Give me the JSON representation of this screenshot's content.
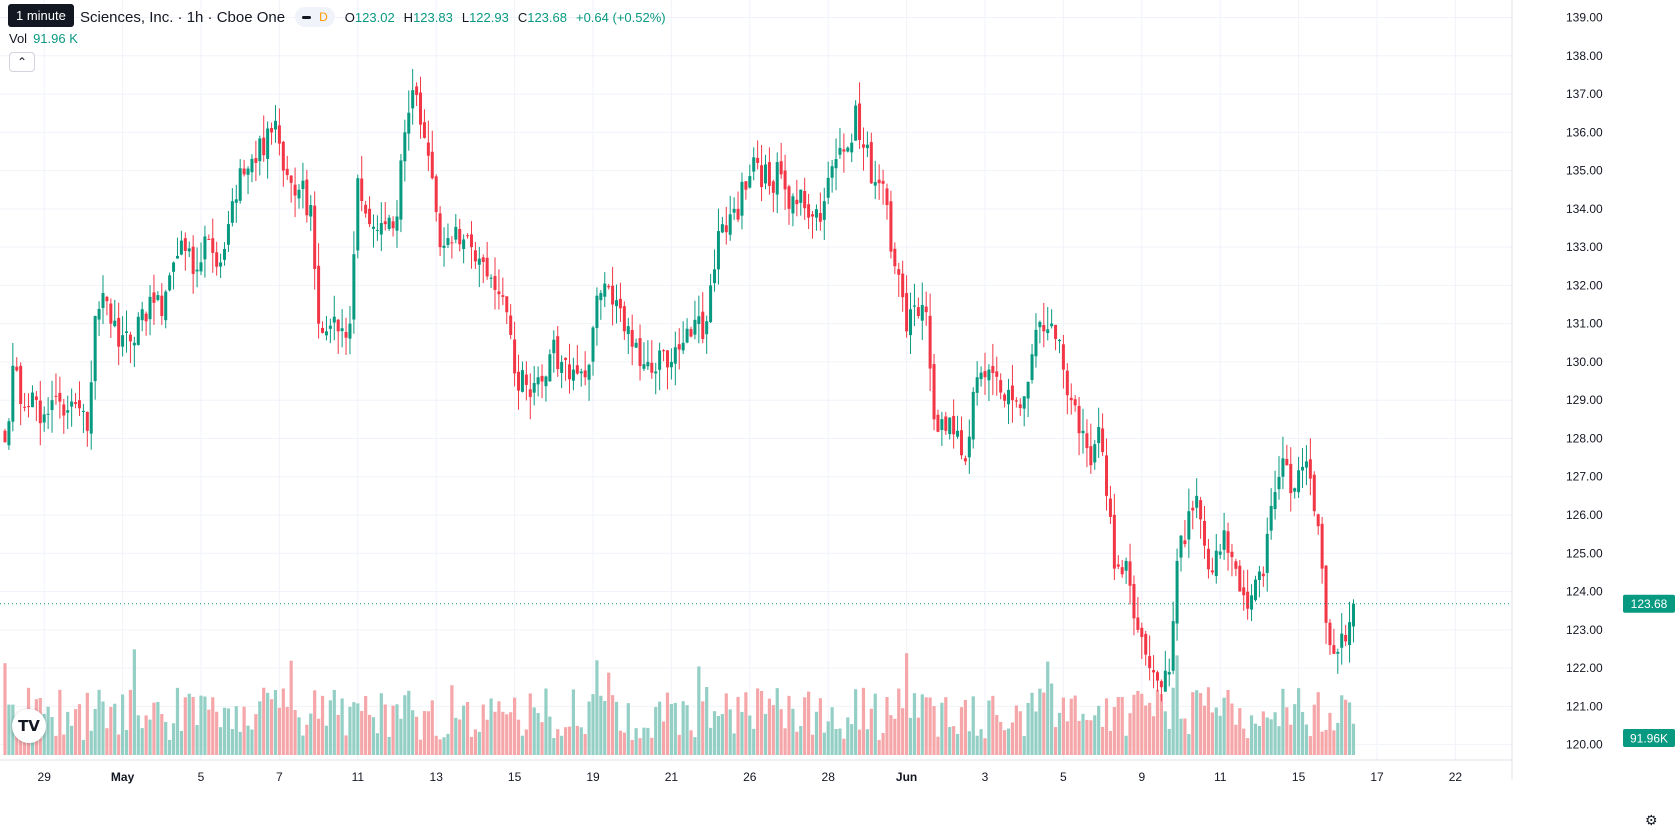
{
  "header": {
    "tooltip": "1 minute",
    "title": "Sciences, Inc. · 1h · Cboe One",
    "pill_label": "D",
    "ohlc": [
      {
        "key": "O",
        "value": "123.02"
      },
      {
        "key": "H",
        "value": "123.83"
      },
      {
        "key": "L",
        "value": "122.93"
      },
      {
        "key": "C",
        "value": "123.68"
      }
    ],
    "change": "+0.64 (+0.52%)"
  },
  "volume": {
    "label": "Vol",
    "value": "91.96 K"
  },
  "price_badge": "123.68",
  "volume_badge": "91.96K",
  "colors": {
    "up": "#089981",
    "down": "#f23645",
    "up_vol": "#93cfc5",
    "down_vol": "#f5a6a9",
    "grid": "#f0f3fa"
  },
  "icons": {
    "collapse": "chevron-up-icon",
    "logo": "tradingview-logo-icon",
    "settings": "gear-icon"
  },
  "chart_data": {
    "type": "candlestick",
    "y_ticks": [
      "120.00",
      "121.00",
      "122.00",
      "123.00",
      "124.00",
      "125.00",
      "126.00",
      "127.00",
      "128.00",
      "129.00",
      "130.00",
      "131.00",
      "132.00",
      "133.00",
      "134.00",
      "135.00",
      "136.00",
      "137.00",
      "138.00",
      "139.00"
    ],
    "ylim": [
      119.7,
      139.35
    ],
    "x_ticks": [
      {
        "label": "29",
        "bar": 10,
        "bold": false
      },
      {
        "label": "May",
        "bar": 30,
        "bold": true
      },
      {
        "label": "5",
        "bar": 50,
        "bold": false
      },
      {
        "label": "7",
        "bar": 70,
        "bold": false
      },
      {
        "label": "11",
        "bar": 90,
        "bold": false
      },
      {
        "label": "13",
        "bar": 110,
        "bold": false
      },
      {
        "label": "15",
        "bar": 130,
        "bold": false
      },
      {
        "label": "19",
        "bar": 150,
        "bold": false
      },
      {
        "label": "21",
        "bar": 170,
        "bold": false
      },
      {
        "label": "26",
        "bar": 190,
        "bold": false
      },
      {
        "label": "28",
        "bar": 210,
        "bold": false
      },
      {
        "label": "Jun",
        "bar": 230,
        "bold": true
      },
      {
        "label": "3",
        "bar": 250,
        "bold": false
      },
      {
        "label": "5",
        "bar": 270,
        "bold": false
      },
      {
        "label": "9",
        "bar": 290,
        "bold": false
      },
      {
        "label": "11",
        "bar": 310,
        "bold": false
      },
      {
        "label": "15",
        "bar": 330,
        "bold": false
      },
      {
        "label": "17",
        "bar": 350,
        "bold": false
      },
      {
        "label": "22",
        "bar": 370,
        "bold": false
      }
    ],
    "anchors": [
      [
        0,
        127.9
      ],
      [
        2,
        129.9
      ],
      [
        4,
        128.9
      ],
      [
        7,
        129.2
      ],
      [
        9,
        128.4
      ],
      [
        12,
        129.0
      ],
      [
        15,
        128.6
      ],
      [
        18,
        128.9
      ],
      [
        21,
        128.2
      ],
      [
        23,
        131.2
      ],
      [
        25,
        131.8
      ],
      [
        27,
        131.0
      ],
      [
        30,
        130.7
      ],
      [
        33,
        130.5
      ],
      [
        37,
        131.7
      ],
      [
        40,
        131.2
      ],
      [
        43,
        132.6
      ],
      [
        46,
        132.9
      ],
      [
        48,
        132.3
      ],
      [
        52,
        133.2
      ],
      [
        55,
        132.6
      ],
      [
        58,
        134.2
      ],
      [
        61,
        134.9
      ],
      [
        64,
        135.2
      ],
      [
        67,
        136.1
      ],
      [
        69,
        136.3
      ],
      [
        71,
        135.0
      ],
      [
        75,
        134.5
      ],
      [
        78,
        134.1
      ],
      [
        80,
        131.0
      ],
      [
        82,
        130.8
      ],
      [
        85,
        130.8
      ],
      [
        88,
        131.0
      ],
      [
        90,
        134.8
      ],
      [
        93,
        133.6
      ],
      [
        97,
        133.6
      ],
      [
        100,
        133.8
      ],
      [
        102,
        136.0
      ],
      [
        104,
        137.1
      ],
      [
        106,
        136.2
      ],
      [
        109,
        134.8
      ],
      [
        111,
        133.0
      ],
      [
        114,
        133.1
      ],
      [
        117,
        133.2
      ],
      [
        119,
        133.0
      ],
      [
        121,
        132.7
      ],
      [
        124,
        132.2
      ],
      [
        127,
        131.7
      ],
      [
        130,
        129.7
      ],
      [
        133,
        129.4
      ],
      [
        136,
        129.6
      ],
      [
        139,
        130.2
      ],
      [
        142,
        130.0
      ],
      [
        145,
        129.8
      ],
      [
        148,
        129.6
      ],
      [
        150,
        130.9
      ],
      [
        152,
        131.8
      ],
      [
        155,
        131.5
      ],
      [
        158,
        130.8
      ],
      [
        161,
        130.5
      ],
      [
        164,
        130.0
      ],
      [
        167,
        130.3
      ],
      [
        170,
        130.0
      ],
      [
        173,
        130.5
      ],
      [
        176,
        131.1
      ],
      [
        178,
        130.6
      ],
      [
        180,
        132.0
      ],
      [
        183,
        133.6
      ],
      [
        186,
        134.0
      ],
      [
        189,
        134.5
      ],
      [
        192,
        135.2
      ],
      [
        195,
        134.6
      ],
      [
        198,
        134.9
      ],
      [
        200,
        134.0
      ],
      [
        203,
        134.5
      ],
      [
        206,
        133.8
      ],
      [
        209,
        134.2
      ],
      [
        212,
        135.3
      ],
      [
        215,
        135.6
      ],
      [
        217,
        136.7
      ],
      [
        219,
        135.6
      ],
      [
        222,
        134.7
      ],
      [
        225,
        134.1
      ],
      [
        227,
        132.5
      ],
      [
        230,
        130.8
      ],
      [
        233,
        131.2
      ],
      [
        235,
        131.3
      ],
      [
        237,
        128.5
      ],
      [
        240,
        128.2
      ],
      [
        243,
        128.2
      ],
      [
        245,
        127.4
      ],
      [
        248,
        129.6
      ],
      [
        251,
        129.8
      ],
      [
        254,
        129.2
      ],
      [
        257,
        129.0
      ],
      [
        260,
        129.1
      ],
      [
        262,
        130.2
      ],
      [
        265,
        130.8
      ],
      [
        268,
        130.6
      ],
      [
        270,
        129.8
      ],
      [
        272,
        129.0
      ],
      [
        275,
        128.2
      ],
      [
        277,
        127.3
      ],
      [
        279,
        128.3
      ],
      [
        281,
        126.5
      ],
      [
        283,
        124.6
      ],
      [
        286,
        124.8
      ],
      [
        289,
        123.0
      ],
      [
        292,
        122.0
      ],
      [
        295,
        121.5
      ],
      [
        297,
        121.9
      ],
      [
        299,
        124.8
      ],
      [
        302,
        126.1
      ],
      [
        304,
        126.5
      ],
      [
        306,
        125.2
      ],
      [
        308,
        124.5
      ],
      [
        311,
        125.6
      ],
      [
        313,
        124.9
      ],
      [
        315,
        124.0
      ],
      [
        318,
        123.9
      ],
      [
        321,
        124.4
      ],
      [
        324,
        126.6
      ],
      [
        327,
        127.3
      ],
      [
        329,
        126.7
      ],
      [
        332,
        127.4
      ],
      [
        334,
        126.1
      ],
      [
        336,
        124.6
      ],
      [
        338,
        122.6
      ],
      [
        341,
        122.9
      ],
      [
        343,
        123.2
      ],
      [
        344,
        123.7
      ]
    ],
    "volume_ylim": [
      0,
      200
    ],
    "last_price": 123.68
  }
}
